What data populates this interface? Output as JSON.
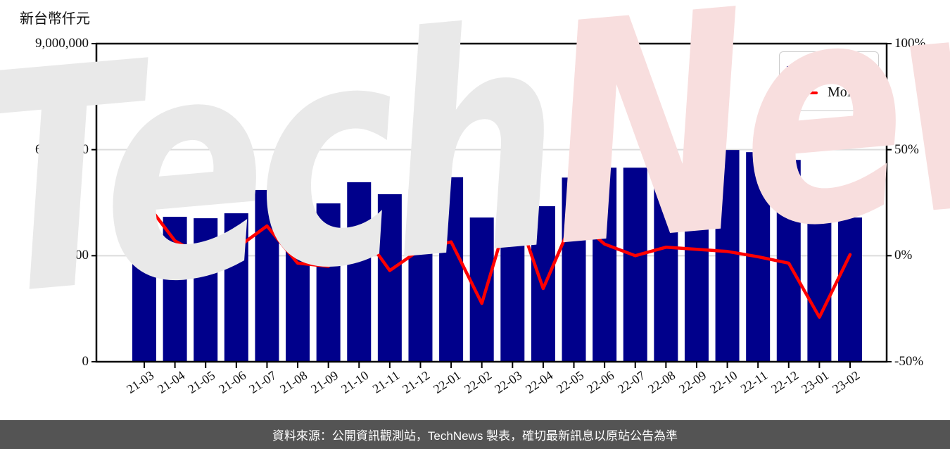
{
  "header": {
    "unit_label": "新台幣仟元"
  },
  "legend": {
    "items": [
      {
        "label": "月營收",
        "type": "bar",
        "color": "#00008b"
      },
      {
        "label": "MoM",
        "type": "line",
        "color": "#ff0000"
      }
    ]
  },
  "watermark": {
    "part1": "Tech",
    "part2": "News",
    "color1": "#e9e9e9",
    "color2": "#f8dede"
  },
  "footer": {
    "text": "資料來源：公開資訊觀測站，TechNews 製表，確切最新訊息以原站公告為準"
  },
  "axes": {
    "y_left": {
      "ticks": [
        {
          "label": "9,000,000",
          "value": 9000000
        },
        {
          "label": "6,000,000",
          "value": 6000000
        },
        {
          "label": "3,000,000",
          "value": 3000000
        },
        {
          "label": "0",
          "value": 0
        }
      ]
    },
    "y_right": {
      "ticks": [
        {
          "label": "100%",
          "value": 100
        },
        {
          "label": "50%",
          "value": 50
        },
        {
          "label": "0%",
          "value": 0
        },
        {
          "label": "-50%",
          "value": -50
        }
      ]
    }
  },
  "chart_data": {
    "type": "bar",
    "title": "新台幣仟元",
    "categories": [
      "21-03",
      "21-04",
      "21-05",
      "21-06",
      "21-07",
      "21-08",
      "21-09",
      "21-10",
      "21-11",
      "21-12",
      "22-01",
      "22-02",
      "22-03",
      "22-04",
      "22-05",
      "22-06",
      "22-07",
      "22-08",
      "22-09",
      "22-10",
      "22-11",
      "22-12",
      "23-01",
      "23-02"
    ],
    "series": [
      {
        "name": "月營收",
        "type": "bar",
        "axis": "left",
        "unit": "新台幣仟元",
        "color": "#00008b",
        "values": [
          3820000,
          4100000,
          4060000,
          4200000,
          4860000,
          4700000,
          4480000,
          5080000,
          4740000,
          4880000,
          5220000,
          4080000,
          5180000,
          4400000,
          5210000,
          5490000,
          5490000,
          5710000,
          5870000,
          5990000,
          5930000,
          5710000,
          4060000,
          4080000
        ]
      },
      {
        "name": "MoM",
        "type": "line",
        "axis": "right",
        "unit": "%",
        "color": "#ff0000",
        "values": [
          26,
          7,
          -1,
          3.5,
          14,
          -3.5,
          -5,
          13,
          -7,
          3,
          6.5,
          -22.5,
          26,
          -15.5,
          18,
          5.5,
          0,
          4,
          3,
          2,
          -0.5,
          -3.5,
          -29,
          0.5
        ]
      }
    ],
    "left_ylim": [
      0,
      9000000
    ],
    "right_ylim": [
      -50,
      100
    ],
    "grid": true,
    "legend_position": "top-right",
    "grid_color": "#dcdcdc",
    "spine_color": "#000000"
  }
}
